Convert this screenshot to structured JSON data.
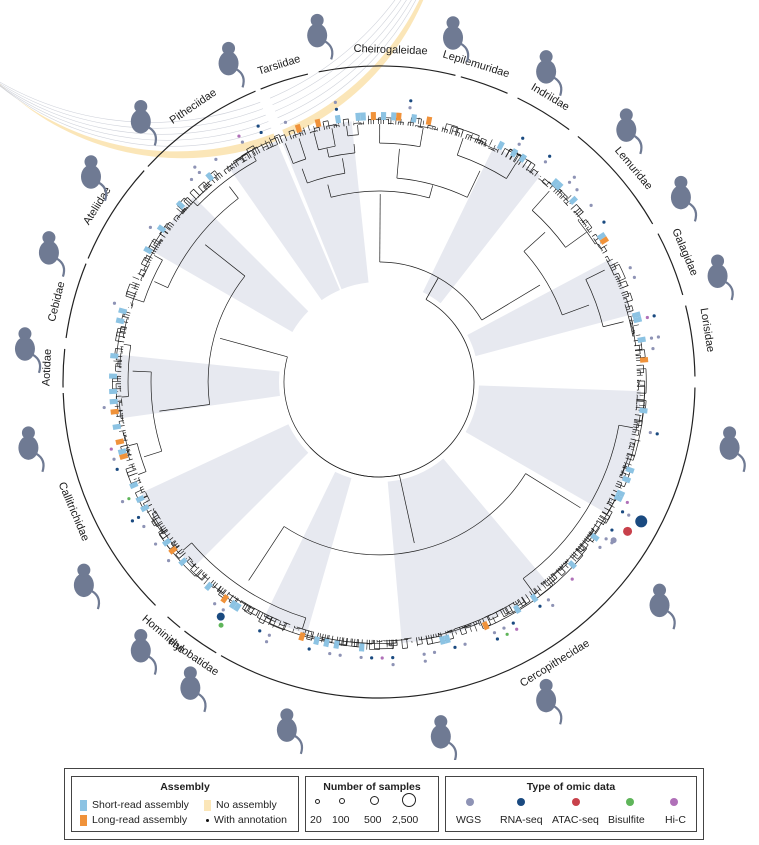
{
  "families": [
    {
      "name": "Tarsiidae",
      "angle": -17.5,
      "span": [
        -22,
        -13
      ]
    },
    {
      "name": "Cheirogaleidae",
      "angle": 2,
      "span": [
        -11,
        14
      ]
    },
    {
      "name": "Lepilemuridae",
      "angle": 17,
      "span": [
        15,
        24
      ]
    },
    {
      "name": "Indriidae",
      "angle": 31,
      "span": [
        26,
        37
      ]
    },
    {
      "name": "Lemuridae",
      "angle": 50,
      "span": [
        39,
        60
      ]
    },
    {
      "name": "Galagidae",
      "angle": 67,
      "span": [
        62,
        74
      ]
    },
    {
      "name": "Lorisidae",
      "angle": 81,
      "span": [
        76,
        89
      ]
    },
    {
      "name": "Cercopithecidae",
      "angle": 148,
      "span": [
        91,
        210
      ]
    },
    {
      "name": "Hylobatidae",
      "angle": 214,
      "span": [
        211,
        218
      ]
    },
    {
      "name": "Hominidae",
      "angle": 220.5,
      "span": [
        219,
        222
      ]
    },
    {
      "name": "Callitrichidae",
      "angle": 247,
      "span": [
        225,
        268
      ]
    },
    {
      "name": "Aotidae",
      "angle": 272.5,
      "span": [
        269,
        276
      ]
    },
    {
      "name": "Cebidae",
      "angle": 284,
      "span": [
        278,
        292
      ]
    },
    {
      "name": "Ateliidae",
      "angle": 302,
      "span": [
        293,
        312
      ]
    },
    {
      "name": "Pitheciidae",
      "angle": 326,
      "span": [
        313,
        337
      ]
    }
  ],
  "legend": {
    "assembly": {
      "title": "Assembly",
      "short_read": "Short-read assembly",
      "long_read": "Long-read assembly",
      "no_assembly": "No assembly",
      "with_annotation": "With annotation"
    },
    "samples": {
      "title": "Number of samples",
      "sizes": [
        "20",
        "100",
        "500",
        "2,500"
      ]
    },
    "omics": {
      "title": "Type of omic data",
      "types": [
        {
          "label": "WGS",
          "color": "#8e93b5"
        },
        {
          "label": "RNA-seq",
          "color": "#1a4a80"
        },
        {
          "label": "ATAC-seq",
          "color": "#c8414b"
        },
        {
          "label": "Bisulfite",
          "color": "#5fb55a"
        },
        {
          "label": "Hi-C",
          "color": "#b070b8"
        }
      ]
    }
  },
  "colors": {
    "no_assembly": "#fbe6b8",
    "short_read": "#8cc3e3",
    "long_read": "#f0923a",
    "clade_shade": "#e7e9f0",
    "animal": "#6f7a93"
  }
}
